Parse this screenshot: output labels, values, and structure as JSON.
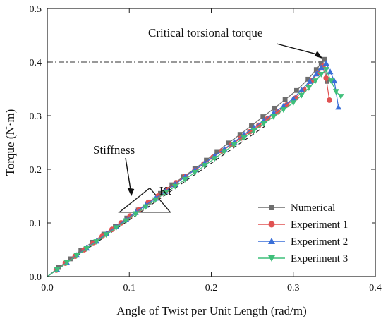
{
  "chart_data": {
    "type": "line",
    "xlabel": "Angle of Twist per Unit Length (rad/m)",
    "ylabel": "Torque (N·m)",
    "xlim": [
      0.0,
      0.4
    ],
    "ylim": [
      0.0,
      0.5
    ],
    "xticks": [
      "0.0",
      "0.1",
      "0.2",
      "0.3",
      "0.4"
    ],
    "yticks": [
      "0.0",
      "0.1",
      "0.2",
      "0.3",
      "0.4",
      "0.5"
    ],
    "grid": false,
    "legend_position": "bottom-right",
    "annotations": {
      "critical_label": "Critical torsional torque",
      "critical_value": 0.4,
      "critical_point": [
        0.336,
        0.405
      ],
      "stiffness_label": "Stiffness",
      "stiffness_point": [
        0.1,
        0.15
      ],
      "kt_label": "Kt",
      "kt_triangle": [
        [
          0.088,
          0.12
        ],
        [
          0.125,
          0.165
        ],
        [
          0.15,
          0.12
        ]
      ],
      "stiffness_line": [
        [
          0.0,
          0.0
        ],
        [
          0.265,
          0.28
        ]
      ]
    },
    "series": [
      {
        "name": "Numerical",
        "color": "#6e6e6e",
        "marker": "square",
        "x": [
          0.0,
          0.014,
          0.028,
          0.041,
          0.055,
          0.069,
          0.083,
          0.097,
          0.111,
          0.124,
          0.138,
          0.152,
          0.166,
          0.18,
          0.194,
          0.207,
          0.221,
          0.235,
          0.249,
          0.263,
          0.277,
          0.29,
          0.304,
          0.318,
          0.328,
          0.334,
          0.338,
          0.341
        ],
        "y": [
          0.0,
          0.017,
          0.033,
          0.049,
          0.064,
          0.079,
          0.094,
          0.109,
          0.124,
          0.139,
          0.155,
          0.171,
          0.186,
          0.201,
          0.217,
          0.233,
          0.249,
          0.265,
          0.281,
          0.298,
          0.314,
          0.33,
          0.347,
          0.368,
          0.386,
          0.398,
          0.405,
          0.364
        ]
      },
      {
        "name": "Experiment 1",
        "color": "#e05252",
        "marker": "circle",
        "x": [
          0.0,
          0.011,
          0.022,
          0.034,
          0.045,
          0.056,
          0.067,
          0.079,
          0.09,
          0.101,
          0.112,
          0.123,
          0.135,
          0.146,
          0.157,
          0.168,
          0.18,
          0.191,
          0.202,
          0.213,
          0.225,
          0.236,
          0.247,
          0.258,
          0.269,
          0.281,
          0.292,
          0.303,
          0.313,
          0.322,
          0.33,
          0.336,
          0.34,
          0.344
        ],
        "y": [
          0.0,
          0.012,
          0.025,
          0.038,
          0.05,
          0.062,
          0.075,
          0.088,
          0.1,
          0.113,
          0.125,
          0.138,
          0.15,
          0.162,
          0.175,
          0.187,
          0.198,
          0.21,
          0.222,
          0.234,
          0.246,
          0.258,
          0.27,
          0.282,
          0.295,
          0.307,
          0.32,
          0.333,
          0.348,
          0.365,
          0.38,
          0.392,
          0.37,
          0.329
        ]
      },
      {
        "name": "Experiment 2",
        "color": "#3a6fd8",
        "marker": "triangle-up",
        "x": [
          0.0,
          0.012,
          0.024,
          0.036,
          0.048,
          0.06,
          0.072,
          0.084,
          0.096,
          0.108,
          0.12,
          0.132,
          0.144,
          0.156,
          0.168,
          0.18,
          0.192,
          0.204,
          0.216,
          0.228,
          0.24,
          0.252,
          0.264,
          0.276,
          0.288,
          0.3,
          0.31,
          0.32,
          0.328,
          0.334,
          0.34,
          0.345,
          0.35,
          0.355
        ],
        "y": [
          0.0,
          0.013,
          0.026,
          0.04,
          0.053,
          0.066,
          0.08,
          0.093,
          0.106,
          0.12,
          0.133,
          0.146,
          0.159,
          0.172,
          0.186,
          0.199,
          0.212,
          0.225,
          0.238,
          0.251,
          0.265,
          0.278,
          0.291,
          0.305,
          0.318,
          0.332,
          0.348,
          0.364,
          0.378,
          0.39,
          0.398,
          0.382,
          0.365,
          0.316
        ]
      },
      {
        "name": "Experiment 3",
        "color": "#3fbf7a",
        "marker": "triangle-down",
        "x": [
          0.0,
          0.012,
          0.024,
          0.036,
          0.048,
          0.06,
          0.072,
          0.084,
          0.096,
          0.108,
          0.12,
          0.132,
          0.144,
          0.156,
          0.168,
          0.18,
          0.192,
          0.204,
          0.216,
          0.228,
          0.24,
          0.252,
          0.264,
          0.276,
          0.288,
          0.3,
          0.31,
          0.319,
          0.327,
          0.334,
          0.34,
          0.346,
          0.352,
          0.358
        ],
        "y": [
          0.0,
          0.013,
          0.026,
          0.039,
          0.052,
          0.065,
          0.078,
          0.091,
          0.104,
          0.117,
          0.13,
          0.143,
          0.156,
          0.168,
          0.181,
          0.194,
          0.207,
          0.22,
          0.233,
          0.246,
          0.259,
          0.272,
          0.285,
          0.298,
          0.311,
          0.324,
          0.338,
          0.352,
          0.365,
          0.377,
          0.386,
          0.365,
          0.345,
          0.336
        ]
      }
    ]
  }
}
